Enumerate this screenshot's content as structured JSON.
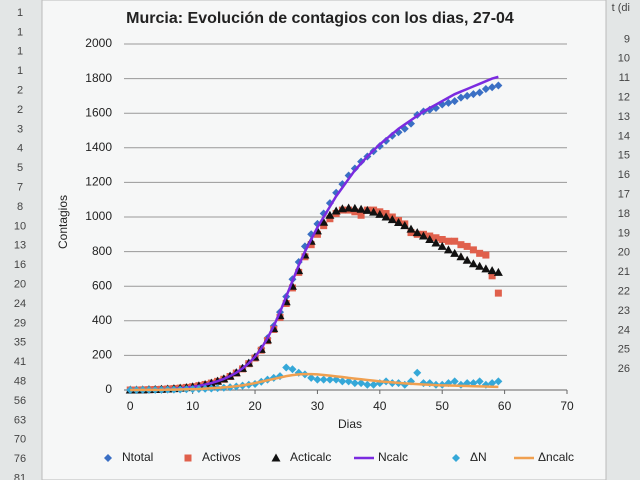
{
  "chart_data": {
    "type": "line",
    "title": "Murcia: Evolución de contagios con los dias, 27-04",
    "x_label": "Dias",
    "y_label": "Contagios",
    "x": [
      0,
      1,
      2,
      3,
      4,
      5,
      6,
      7,
      8,
      9,
      10,
      11,
      12,
      13,
      14,
      15,
      16,
      17,
      18,
      19,
      20,
      21,
      22,
      23,
      24,
      25,
      26,
      27,
      28,
      29,
      30,
      31,
      32,
      33,
      34,
      35,
      36,
      37,
      38,
      39,
      40,
      41,
      42,
      43,
      44,
      45,
      46,
      47,
      48,
      49,
      50,
      51,
      52,
      53,
      54,
      55,
      56,
      57,
      58,
      59
    ],
    "xlim": [
      -1,
      70
    ],
    "xticks": [
      0,
      10,
      20,
      30,
      40,
      50,
      60,
      70
    ],
    "ylim": [
      0,
      2000
    ],
    "yticks": [
      0,
      200,
      400,
      600,
      800,
      1000,
      1200,
      1400,
      1600,
      1800,
      2000
    ],
    "grid": true,
    "legend": "bottom",
    "series": [
      {
        "name": "Ntotal",
        "color": "#3a6fc4",
        "marker": "diamond",
        "values": [
          0,
          0,
          1,
          2,
          3,
          4,
          6,
          8,
          11,
          15,
          20,
          26,
          33,
          42,
          53,
          66,
          82,
          102,
          127,
          157,
          192,
          240,
          300,
          370,
          450,
          540,
          640,
          740,
          830,
          900,
          960,
          1020,
          1080,
          1140,
          1190,
          1240,
          1280,
          1320,
          1350,
          1380,
          1410,
          1440,
          1470,
          1490,
          1510,
          1540,
          1590,
          1610,
          1620,
          1630,
          1650,
          1660,
          1670,
          1690,
          1700,
          1710,
          1720,
          1740,
          1750,
          1760
        ]
      },
      {
        "name": "Activos",
        "color": "#e0604c",
        "marker": "square",
        "values": [
          0,
          0,
          1,
          2,
          3,
          4,
          6,
          8,
          11,
          15,
          19,
          25,
          32,
          40,
          50,
          62,
          78,
          98,
          122,
          152,
          185,
          230,
          285,
          350,
          420,
          500,
          590,
          680,
          770,
          840,
          900,
          950,
          990,
          1020,
          1040,
          1040,
          1030,
          1010,
          1040,
          1040,
          1030,
          1020,
          1000,
          980,
          960,
          910,
          900,
          900,
          890,
          880,
          870,
          860,
          860,
          840,
          830,
          810,
          790,
          780,
          660,
          560
        ]
      },
      {
        "name": "Acticalc",
        "color": "#111111",
        "marker": "triangle",
        "values": [
          0,
          0,
          1,
          2,
          3,
          4,
          6,
          8,
          11,
          14,
          18,
          24,
          31,
          40,
          51,
          64,
          80,
          100,
          125,
          155,
          190,
          235,
          290,
          355,
          430,
          510,
          600,
          690,
          780,
          860,
          920,
          970,
          1010,
          1035,
          1048,
          1052,
          1050,
          1045,
          1038,
          1028,
          1015,
          1000,
          985,
          968,
          950,
          930,
          910,
          890,
          870,
          850,
          830,
          810,
          790,
          770,
          750,
          730,
          715,
          700,
          690,
          680
        ]
      },
      {
        "name": "Ncalc",
        "color": "#7b2be0",
        "marker": "line",
        "values": [
          0,
          0,
          1,
          2,
          3,
          4,
          5,
          7,
          10,
          14,
          18,
          24,
          31,
          40,
          51,
          64,
          80,
          100,
          125,
          155,
          192,
          240,
          300,
          370,
          450,
          540,
          630,
          720,
          800,
          870,
          940,
          1000,
          1060,
          1120,
          1170,
          1220,
          1270,
          1310,
          1350,
          1385,
          1420,
          1450,
          1480,
          1510,
          1535,
          1560,
          1585,
          1610,
          1630,
          1650,
          1670,
          1690,
          1710,
          1725,
          1740,
          1755,
          1770,
          1785,
          1800,
          1810
        ]
      },
      {
        "name": "ΔN",
        "color": "#35a8d8",
        "marker": "diamond",
        "values": [
          0,
          0,
          1,
          1,
          1,
          1,
          2,
          2,
          3,
          4,
          5,
          6,
          7,
          9,
          11,
          13,
          16,
          20,
          25,
          30,
          35,
          48,
          60,
          70,
          80,
          130,
          120,
          100,
          90,
          70,
          60,
          60,
          60,
          60,
          50,
          50,
          40,
          40,
          30,
          30,
          40,
          50,
          40,
          40,
          30,
          50,
          100,
          40,
          40,
          30,
          30,
          40,
          50,
          30,
          40,
          40,
          50,
          30,
          40,
          50
        ]
      },
      {
        "name": "Δncalc",
        "color": "#f0a050",
        "marker": "line",
        "values": [
          0,
          0,
          1,
          1,
          1,
          1,
          2,
          2,
          3,
          4,
          5,
          6,
          8,
          10,
          12,
          15,
          18,
          22,
          27,
          33,
          40,
          48,
          56,
          64,
          72,
          80,
          86,
          90,
          92,
          92,
          90,
          87,
          83,
          79,
          75,
          70,
          66,
          62,
          58,
          54,
          50,
          47,
          44,
          41,
          38,
          36,
          34,
          32,
          30,
          28,
          27,
          26,
          25,
          24,
          23,
          22,
          21,
          20,
          19,
          18
        ]
      }
    ]
  },
  "sheet": {
    "left_column": [
      "1",
      "1",
      "1",
      "1",
      "2",
      "2",
      "3",
      "4",
      "5",
      "7",
      "8",
      "10",
      "13",
      "16",
      "20",
      "24",
      "29",
      "35",
      "41",
      "48",
      "56",
      "63",
      "70",
      "76",
      "81"
    ],
    "right_column": [
      "t (di",
      "9",
      "10",
      "11",
      "12",
      "13",
      "14",
      "15",
      "16",
      "17",
      "18",
      "19",
      "20",
      "21",
      "22",
      "23",
      "24",
      "25",
      "26"
    ]
  }
}
